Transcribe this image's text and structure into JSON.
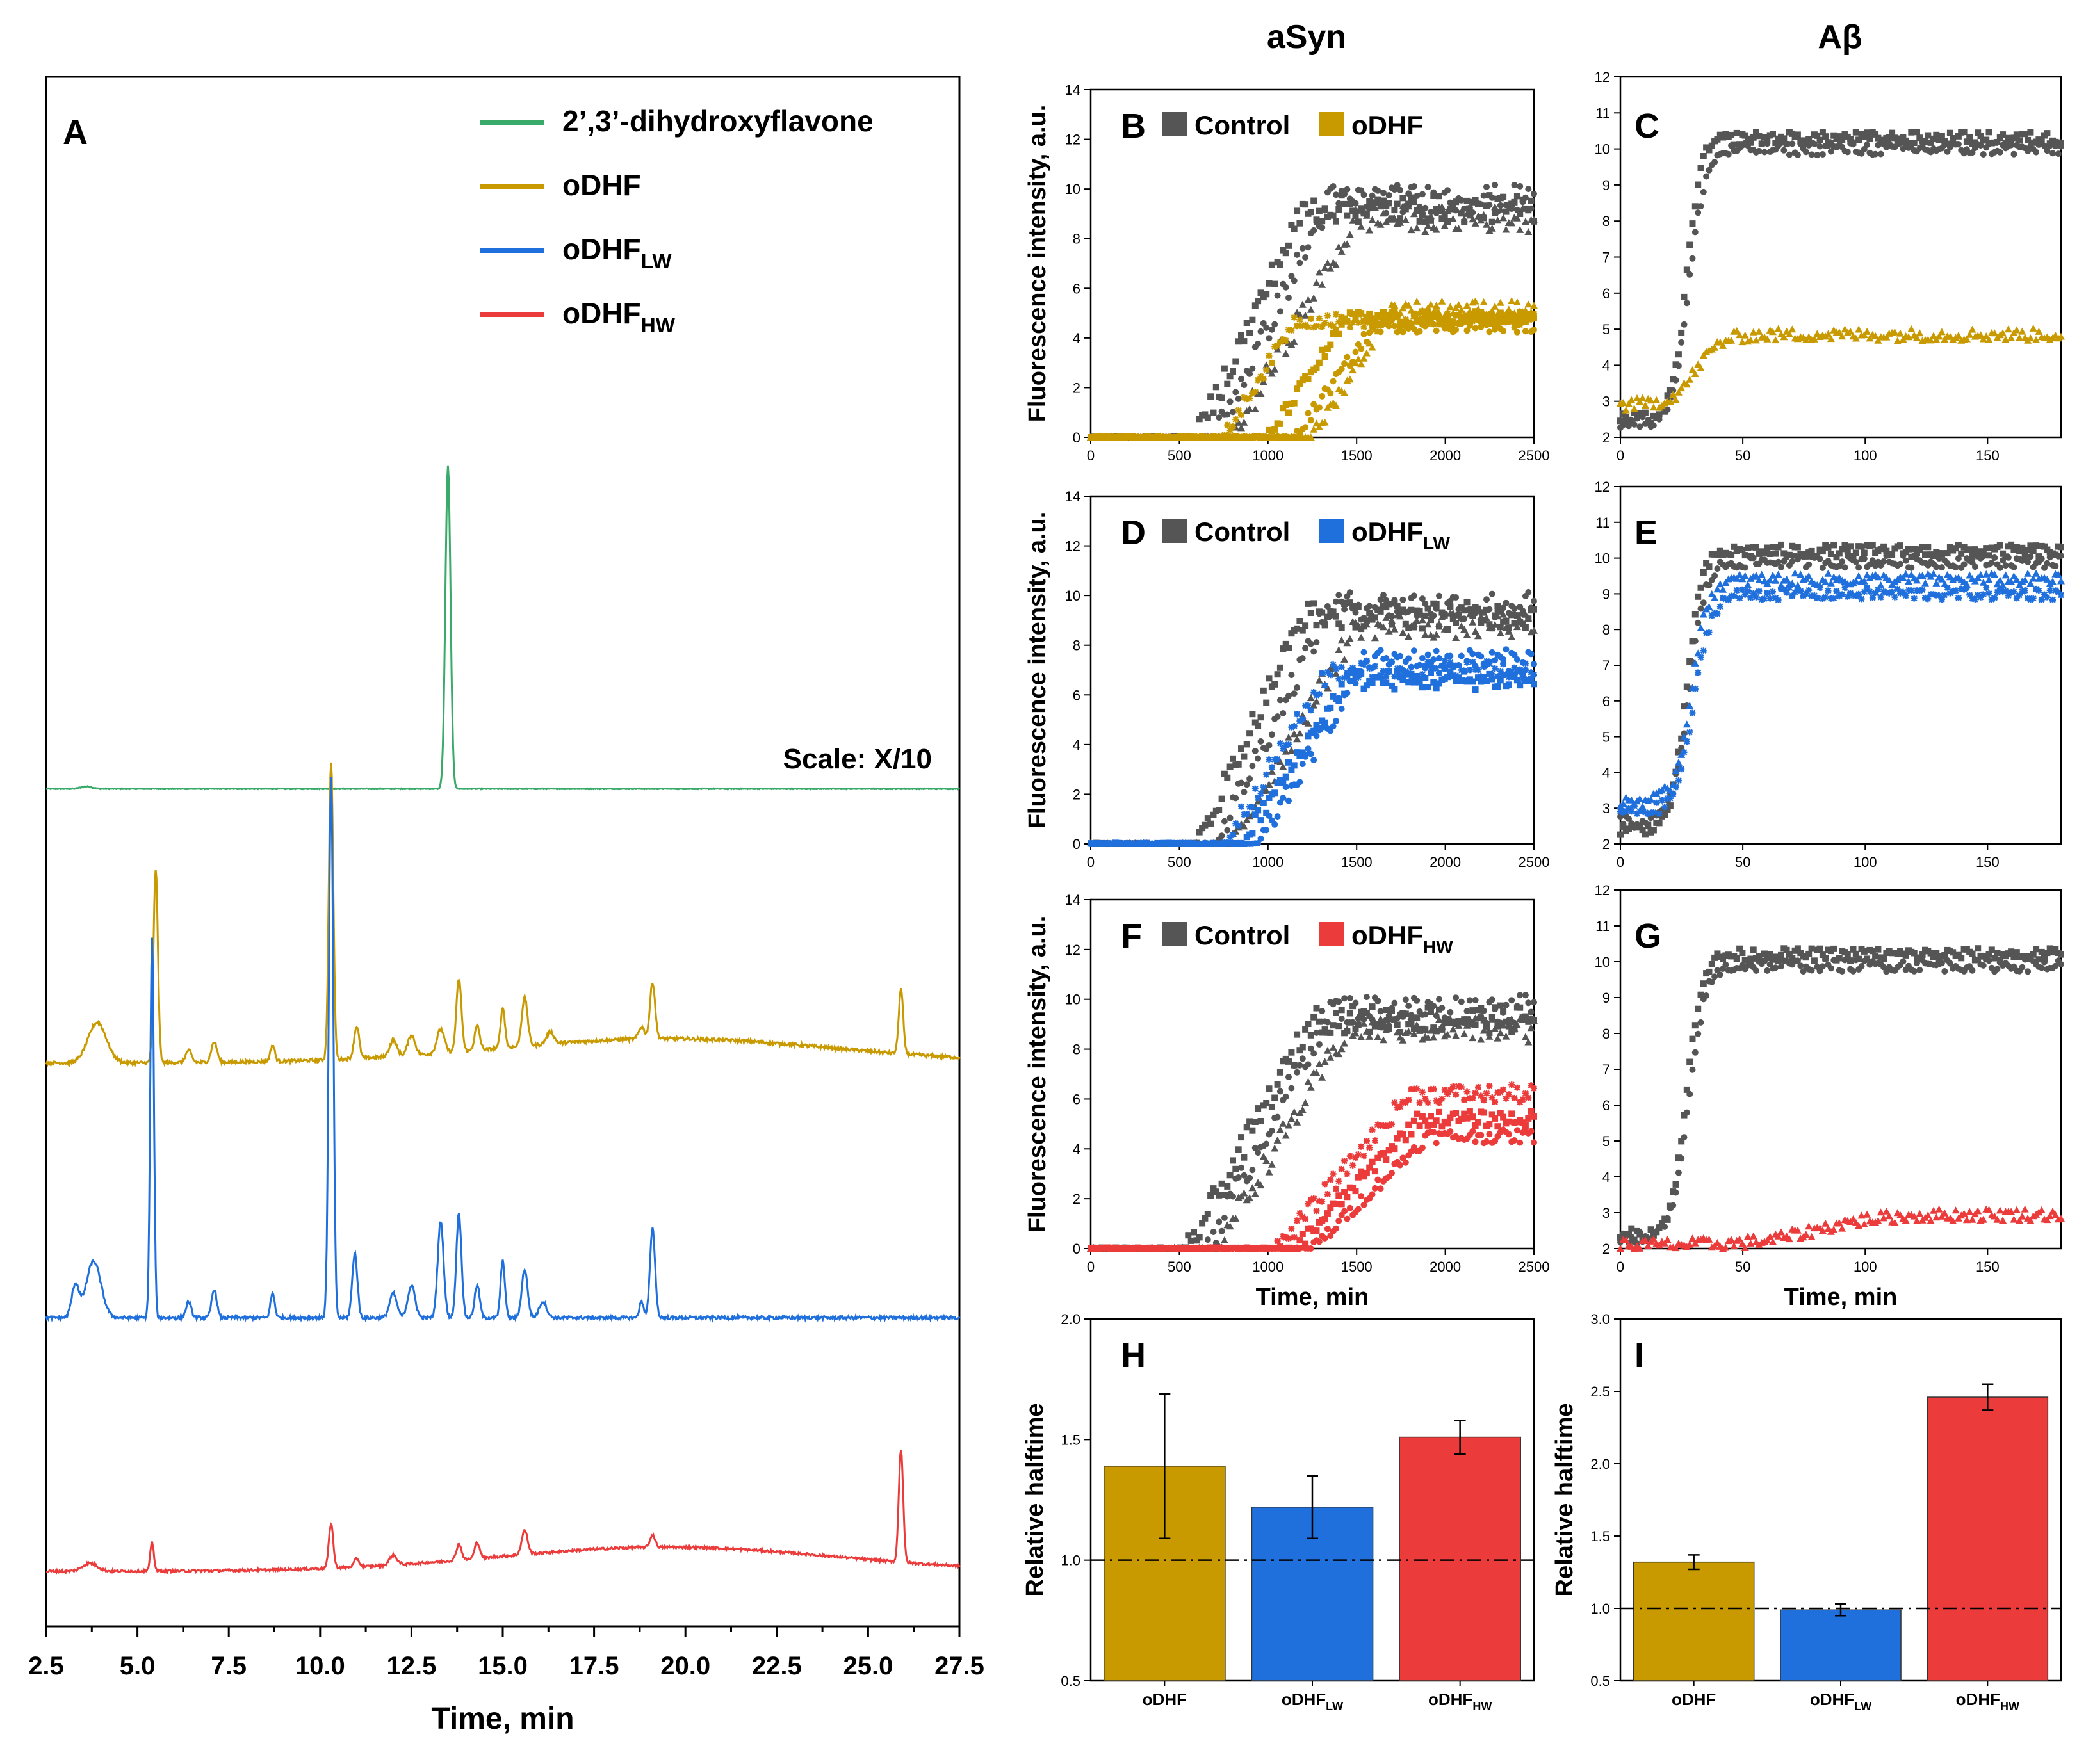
{
  "colors": {
    "green": "#3aaa6a",
    "gold": "#c99a00",
    "blue": "#1f6fdc",
    "red": "#ec3b3b",
    "gray": "#555555"
  },
  "column_titles": {
    "asyn": "aSyn",
    "abeta": "Aβ"
  },
  "chart_data": [
    {
      "id": "A",
      "panel_letter": "A",
      "type": "line",
      "title": "",
      "xlabel": "Time, min",
      "ylabel": "",
      "xlim": [
        2.5,
        27.5
      ],
      "xticks": [
        "2.5",
        "5.0",
        "7.5",
        "10.0",
        "12.5",
        "15.0",
        "17.5",
        "20.0",
        "22.5",
        "25.0",
        "27.5"
      ],
      "annotation": "Scale: X/10",
      "legend": [
        {
          "label": "2’,3’-dihydroxyflavone",
          "sub": "",
          "color": "#3aaa6a"
        },
        {
          "label": "oDHF",
          "sub": "",
          "color": "#c99a00"
        },
        {
          "label": "oDHF",
          "sub": "LW",
          "color": "#1f6fdc"
        },
        {
          "label": "oDHF",
          "sub": "HW",
          "color": "#ec3b3b"
        }
      ],
      "series": [
        {
          "name": "2’,3’-dihydroxyflavone",
          "color": "#3aaa6a",
          "baseline": 0,
          "drift": 0,
          "noise": 0.1,
          "peaks": [
            [
              3.6,
              0.3,
              0.15
            ],
            [
              13.5,
              40,
              0.07
            ]
          ]
        },
        {
          "name": "oDHF",
          "color": "#c99a00",
          "baseline": 0,
          "drift": 3,
          "noise": 0.4,
          "peaks": [
            [
              3.9,
              5,
              0.25
            ],
            [
              5.5,
              24,
              0.06
            ],
            [
              6.4,
              1.5,
              0.08
            ],
            [
              7.1,
              2.5,
              0.08
            ],
            [
              8.7,
              2,
              0.06
            ],
            [
              10.3,
              37,
              0.06
            ],
            [
              11.0,
              4,
              0.07
            ],
            [
              12.0,
              2,
              0.1
            ],
            [
              12.5,
              2.5,
              0.1
            ],
            [
              13.3,
              3,
              0.1
            ],
            [
              13.8,
              9,
              0.07
            ],
            [
              14.3,
              3,
              0.07
            ],
            [
              15.0,
              5,
              0.06
            ],
            [
              15.6,
              6,
              0.08
            ],
            [
              16.3,
              1.5,
              0.1
            ],
            [
              18.8,
              1.5,
              0.08
            ],
            [
              19.1,
              7,
              0.07
            ],
            [
              25.9,
              8,
              0.06
            ]
          ]
        },
        {
          "name": "oDHF LW",
          "color": "#1f6fdc",
          "baseline": 0,
          "drift": 0,
          "noise": 0.4,
          "peaks": [
            [
              3.3,
              4,
              0.1
            ],
            [
              3.8,
              7,
              0.2
            ],
            [
              5.4,
              47,
              0.05
            ],
            [
              6.4,
              2,
              0.07
            ],
            [
              7.1,
              3.5,
              0.07
            ],
            [
              8.7,
              3,
              0.06
            ],
            [
              10.3,
              67,
              0.06
            ],
            [
              10.95,
              8,
              0.07
            ],
            [
              12.0,
              3,
              0.1
            ],
            [
              12.5,
              4,
              0.1
            ],
            [
              13.3,
              12,
              0.08
            ],
            [
              13.8,
              13,
              0.07
            ],
            [
              14.3,
              4,
              0.07
            ],
            [
              15.0,
              7,
              0.06
            ],
            [
              15.6,
              6,
              0.08
            ],
            [
              16.1,
              2,
              0.1
            ],
            [
              18.8,
              2,
              0.06
            ],
            [
              19.1,
              11,
              0.07
            ]
          ]
        },
        {
          "name": "oDHF HW",
          "color": "#ec3b3b",
          "baseline": 0,
          "drift": 3,
          "noise": 0.3,
          "peaks": [
            [
              3.7,
              1,
              0.2
            ],
            [
              5.4,
              3.5,
              0.05
            ],
            [
              10.3,
              5.5,
              0.06
            ],
            [
              11.0,
              1,
              0.07
            ],
            [
              12.0,
              1.2,
              0.1
            ],
            [
              13.8,
              2,
              0.07
            ],
            [
              14.3,
              2,
              0.07
            ],
            [
              15.6,
              3,
              0.08
            ],
            [
              19.1,
              1.5,
              0.07
            ],
            [
              25.9,
              14,
              0.06
            ]
          ]
        }
      ]
    },
    {
      "id": "B",
      "panel_letter": "B",
      "type": "scatter",
      "ylabel": "Fluorescence intensity, a.u.",
      "xlabel": "",
      "xlim": [
        0,
        2500
      ],
      "ylim": [
        0,
        14
      ],
      "xticks": [
        0,
        500,
        1000,
        1500,
        2000,
        2500
      ],
      "yticks": [
        0,
        2,
        4,
        6,
        8,
        10,
        12,
        14
      ],
      "legend": [
        {
          "label": "Control",
          "sub": "",
          "color": "#555555"
        },
        {
          "label": "oDHF",
          "sub": "",
          "color": "#c99a00"
        }
      ],
      "series": [
        {
          "name": "Control",
          "color": "#555555",
          "plateau": 9.2,
          "start": 600,
          "end": 1200
        },
        {
          "name": "Control",
          "color": "#555555",
          "plateau": 9.6,
          "start": 700,
          "end": 1350
        },
        {
          "name": "Control",
          "color": "#555555",
          "plateau": 8.8,
          "start": 800,
          "end": 1500
        },
        {
          "name": "oDHF",
          "color": "#c99a00",
          "plateau": 4.7,
          "start": 750,
          "end": 1150
        },
        {
          "name": "oDHF",
          "color": "#c99a00",
          "plateau": 4.8,
          "start": 1000,
          "end": 1450
        },
        {
          "name": "oDHF",
          "color": "#c99a00",
          "plateau": 4.5,
          "start": 1150,
          "end": 1600
        },
        {
          "name": "oDHF",
          "color": "#c99a00",
          "plateau": 5.2,
          "start": 1250,
          "end": 1700
        }
      ]
    },
    {
      "id": "C",
      "panel_letter": "C",
      "type": "scatter",
      "ylabel": "",
      "xlabel": "",
      "xlim": [
        0,
        180
      ],
      "ylim": [
        2,
        12
      ],
      "xticks": [
        0,
        50,
        100,
        150
      ],
      "yticks": [
        2,
        3,
        4,
        5,
        6,
        7,
        8,
        9,
        10,
        11,
        12
      ],
      "series": [
        {
          "name": "Control",
          "color": "#555555",
          "y0": 2.5,
          "y1": 10.3,
          "mid": 27,
          "k": 0.35
        },
        {
          "name": "Control",
          "color": "#555555",
          "y0": 2.4,
          "y1": 10.0,
          "mid": 28,
          "k": 0.3
        },
        {
          "name": "oDHF",
          "color": "#c99a00",
          "y0": 2.9,
          "y1": 4.85,
          "mid": 31,
          "k": 0.2
        }
      ]
    },
    {
      "id": "D",
      "panel_letter": "D",
      "type": "scatter",
      "ylabel": "Fluorescence intensity, a.u.",
      "xlabel": "",
      "xlim": [
        0,
        2500
      ],
      "ylim": [
        0,
        14
      ],
      "xticks": [
        0,
        500,
        1000,
        1500,
        2000,
        2500
      ],
      "yticks": [
        0,
        2,
        4,
        6,
        8,
        10,
        12,
        14
      ],
      "legend": [
        {
          "label": "Control",
          "sub": "",
          "color": "#555555"
        },
        {
          "label": "oDHF",
          "sub": "LW",
          "color": "#1f6fdc"
        }
      ],
      "series": [
        {
          "name": "Control",
          "color": "#555555",
          "plateau": 9.2,
          "start": 600,
          "end": 1200
        },
        {
          "name": "Control",
          "color": "#555555",
          "plateau": 9.6,
          "start": 700,
          "end": 1350
        },
        {
          "name": "Control",
          "color": "#555555",
          "plateau": 8.8,
          "start": 800,
          "end": 1500
        },
        {
          "name": "oDHF LW",
          "color": "#1f6fdc",
          "plateau": 7.0,
          "start": 750,
          "end": 1350
        },
        {
          "name": "oDHF LW",
          "color": "#1f6fdc",
          "plateau": 6.6,
          "start": 850,
          "end": 1450
        },
        {
          "name": "oDHF LW",
          "color": "#1f6fdc",
          "plateau": 7.4,
          "start": 950,
          "end": 1550
        }
      ]
    },
    {
      "id": "E",
      "panel_letter": "E",
      "type": "scatter",
      "ylabel": "",
      "xlabel": "",
      "xlim": [
        0,
        180
      ],
      "ylim": [
        2,
        12
      ],
      "xticks": [
        0,
        50,
        100,
        150
      ],
      "yticks": [
        2,
        3,
        4,
        5,
        6,
        7,
        8,
        9,
        10,
        11,
        12
      ],
      "series": [
        {
          "name": "Control",
          "color": "#555555",
          "y0": 2.4,
          "y1": 10.2,
          "mid": 27,
          "k": 0.33
        },
        {
          "name": "Control",
          "color": "#555555",
          "y0": 2.6,
          "y1": 9.9,
          "mid": 28,
          "k": 0.3
        },
        {
          "name": "oDHF LW",
          "color": "#1f6fdc",
          "y0": 3.2,
          "y1": 9.4,
          "mid": 29,
          "k": 0.3
        },
        {
          "name": "oDHF LW",
          "color": "#1f6fdc",
          "y0": 2.9,
          "y1": 9.0,
          "mid": 30,
          "k": 0.28
        }
      ]
    },
    {
      "id": "F",
      "panel_letter": "F",
      "type": "scatter",
      "ylabel": "Fluorescence intensity, a.u.",
      "xlabel": "Time, min",
      "xlim": [
        0,
        2500
      ],
      "ylim": [
        0,
        14
      ],
      "xticks": [
        0,
        500,
        1000,
        1500,
        2000,
        2500
      ],
      "yticks": [
        0,
        2,
        4,
        6,
        8,
        10,
        12,
        14
      ],
      "legend": [
        {
          "label": "Control",
          "sub": "",
          "color": "#555555"
        },
        {
          "label": "oDHF",
          "sub": "HW",
          "color": "#ec3b3b"
        }
      ],
      "series": [
        {
          "name": "Control",
          "color": "#555555",
          "plateau": 9.2,
          "start": 550,
          "end": 1250
        },
        {
          "name": "Control",
          "color": "#555555",
          "plateau": 9.6,
          "start": 650,
          "end": 1350
        },
        {
          "name": "Control",
          "color": "#555555",
          "plateau": 8.8,
          "start": 700,
          "end": 1450
        },
        {
          "name": "oDHF HW",
          "color": "#ec3b3b",
          "plateau": 6.2,
          "start": 1050,
          "end": 1800
        },
        {
          "name": "oDHF HW",
          "color": "#ec3b3b",
          "plateau": 5.2,
          "start": 1150,
          "end": 1850
        },
        {
          "name": "oDHF HW",
          "color": "#ec3b3b",
          "plateau": 4.5,
          "start": 1250,
          "end": 1900
        }
      ]
    },
    {
      "id": "G",
      "panel_letter": "G",
      "type": "scatter",
      "ylabel": "",
      "xlabel": "Time, min",
      "xlim": [
        0,
        180
      ],
      "ylim": [
        2,
        12
      ],
      "xticks": [
        0,
        50,
        100,
        150
      ],
      "yticks": [
        2,
        3,
        4,
        5,
        6,
        7,
        8,
        9,
        10,
        11,
        12
      ],
      "series": [
        {
          "name": "Control",
          "color": "#555555",
          "y0": 2.4,
          "y1": 10.2,
          "mid": 27,
          "k": 0.33
        },
        {
          "name": "Control",
          "color": "#555555",
          "y0": 2.3,
          "y1": 9.9,
          "mid": 28,
          "k": 0.3
        },
        {
          "name": "oDHF HW",
          "color": "#ec3b3b",
          "y0": 2.1,
          "y1": 2.95,
          "mid": 80,
          "k": 0.08
        }
      ]
    },
    {
      "id": "H",
      "panel_letter": "H",
      "type": "bar",
      "ylabel": "Relative halftime",
      "xlabel": "",
      "ylim": [
        0.5,
        2.0
      ],
      "yticks": [
        "0.5",
        "1.0",
        "1.5",
        "2.0"
      ],
      "reference_line": 1.0,
      "categories": [
        {
          "label": "oDHF",
          "sub": ""
        },
        {
          "label": "oDHF",
          "sub": "LW"
        },
        {
          "label": "oDHF",
          "sub": "HW"
        }
      ],
      "values": [
        1.39,
        1.22,
        1.51
      ],
      "errors": [
        0.3,
        0.13,
        0.07
      ],
      "colors": [
        "#c99a00",
        "#1f6fdc",
        "#ec3b3b"
      ]
    },
    {
      "id": "I",
      "panel_letter": "I",
      "type": "bar",
      "ylabel": "Relative halftime",
      "xlabel": "",
      "ylim": [
        0.5,
        3.0
      ],
      "yticks": [
        "0.5",
        "1.0",
        "1.5",
        "2.0",
        "2.5",
        "3.0"
      ],
      "reference_line": 1.0,
      "categories": [
        {
          "label": "oDHF",
          "sub": ""
        },
        {
          "label": "oDHF",
          "sub": "LW"
        },
        {
          "label": "oDHF",
          "sub": "HW"
        }
      ],
      "values": [
        1.32,
        0.99,
        2.46
      ],
      "errors": [
        0.05,
        0.04,
        0.09
      ],
      "colors": [
        "#c99a00",
        "#1f6fdc",
        "#ec3b3b"
      ]
    }
  ]
}
